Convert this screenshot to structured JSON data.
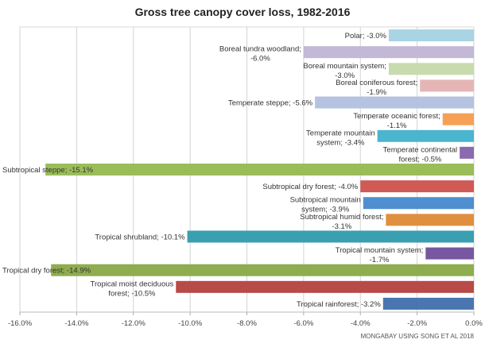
{
  "chart_data": {
    "type": "bar",
    "orientation": "horizontal",
    "title": "Gross tree canopy cover loss, 1982-2016",
    "source": "MONGABAY USING SONG ET AL 2018",
    "xlim": [
      -16,
      0
    ],
    "xticks": [
      "-16.0%",
      "-14.0%",
      "-12.0%",
      "-10.0%",
      "-8.0%",
      "-6.0%",
      "-4.0%",
      "-2.0%",
      "0.0%"
    ],
    "grid": true,
    "categories": [
      "Polar",
      "Boreal tundra woodland",
      "Boreal mountain system",
      "Boreal coniferous forest",
      "Temperate steppe",
      "Temperate oceanic forest",
      "Temperate mountain system",
      "Temperate continental forest",
      "Subtropical steppe",
      "Subtropical dry forest",
      "Subtropical mountain system",
      "Subtropical humid forest",
      "Tropical shrubland",
      "Tropical mountain system",
      "Tropical dry forest",
      "Tropical moist deciduous forest",
      "Tropical rainforest"
    ],
    "values": [
      -3.0,
      -6.0,
      -3.0,
      -1.9,
      -5.6,
      -1.1,
      -3.4,
      -0.5,
      -15.1,
      -4.0,
      -3.9,
      -3.1,
      -10.1,
      -1.7,
      -14.9,
      -10.5,
      -3.2
    ],
    "labels": [
      [
        "Polar; -3.0%"
      ],
      [
        "Boreal tundra woodland;",
        "-6.0%"
      ],
      [
        "Boreal mountain system;",
        "-3.0%"
      ],
      [
        "Boreal coniferous forest;",
        "-1.9%"
      ],
      [
        "Temperate steppe; -5.6%"
      ],
      [
        "Temperate oceanic forest;",
        "-1.1%"
      ],
      [
        "Temperate mountain",
        "system; -3.4%"
      ],
      [
        "Temperate continental",
        "forest; -0.5%"
      ],
      [
        "Subtropical steppe; -15.1%"
      ],
      [
        "Subtropical dry forest; -4.0%"
      ],
      [
        "Subtropical mountain",
        "system; -3.9%"
      ],
      [
        "Subtropical humid forest;",
        "-3.1%"
      ],
      [
        "Tropical shrubland; -10.1%"
      ],
      [
        "Tropical mountain system;",
        "-1.7%"
      ],
      [
        "Tropical dry forest; -14.9%"
      ],
      [
        "Tropical moist deciduous",
        "forest; -10.5%"
      ],
      [
        "Tropical rainforest; -3.2%"
      ]
    ],
    "colors": [
      "#a9d4e4",
      "#c3b8d6",
      "#c8dbae",
      "#e5b5b6",
      "#b5c3e0",
      "#f6a055",
      "#4ab5cf",
      "#8a6bb0",
      "#9bbd59",
      "#d05a56",
      "#4f8fd0",
      "#e08f3e",
      "#3a9fb0",
      "#7758a0",
      "#8fad4e",
      "#b84a47",
      "#4a76b0"
    ]
  }
}
